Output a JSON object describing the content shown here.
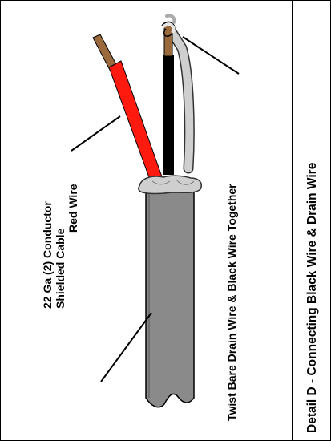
{
  "labels": {
    "cable_line1": "22 Ga (2) Conductor",
    "cable_line2": "Shielded Cable",
    "red_wire": "Red Wire",
    "twist": "Twist Bare Drain Wire & Black Wire Together"
  },
  "title": "Detail D  - Connecting Black Wire & Drain Wire",
  "colors": {
    "red_insulation": "#ff1a10",
    "black_insulation": "#000000",
    "drain_wire": "#cfcfcf",
    "cable_jacket": "#8a8a8a",
    "copper": "#9a6a3c"
  }
}
